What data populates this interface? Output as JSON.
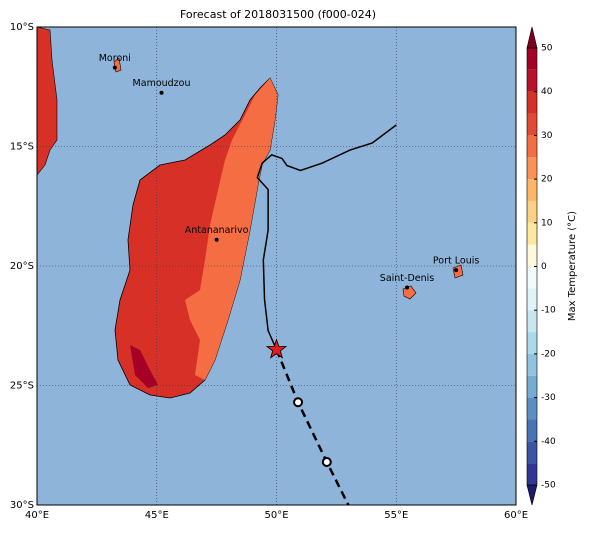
{
  "chart_data": {
    "type": "map",
    "title": "Forecast of 2018031500 (f000-024)",
    "xlim": [
      40,
      60
    ],
    "ylim": [
      -30,
      -10
    ],
    "xticks": [
      {
        "value": 40,
        "label": "40°E"
      },
      {
        "value": 45,
        "label": "45°E"
      },
      {
        "value": 50,
        "label": "50°E"
      },
      {
        "value": 55,
        "label": "55°E"
      },
      {
        "value": 60,
        "label": "60°E"
      }
    ],
    "yticks": [
      {
        "value": -10,
        "label": "10°S"
      },
      {
        "value": -15,
        "label": "15°S"
      },
      {
        "value": -20,
        "label": "20°S"
      },
      {
        "value": -25,
        "label": "25°S"
      },
      {
        "value": -30,
        "label": "30°S"
      }
    ],
    "grid": true,
    "ocean_color": "#8fb4d9",
    "cities": [
      {
        "name": "Moroni",
        "lon": 43.25,
        "lat": -11.7
      },
      {
        "name": "Mamoudzou",
        "lon": 45.2,
        "lat": -12.75
      },
      {
        "name": "Antananarivo",
        "lon": 47.5,
        "lat": -18.9
      },
      {
        "name": "Saint-Denis",
        "lon": 55.45,
        "lat": -20.9
      },
      {
        "name": "Port Louis",
        "lon": 57.5,
        "lat": -20.17
      }
    ],
    "past_track": {
      "color": "#000000",
      "lon": [
        55.0,
        54.0,
        53.07,
        51.9,
        51.0,
        50.44,
        50.23,
        49.8,
        49.4,
        49.2,
        49.65,
        49.65,
        49.45,
        49.5,
        49.65,
        50.0
      ],
      "lat": [
        -14.1,
        -14.85,
        -15.15,
        -15.7,
        -16.0,
        -15.8,
        -15.5,
        -15.35,
        -15.7,
        -16.3,
        -16.8,
        -18.5,
        -19.75,
        -21.4,
        -22.7,
        -23.5
      ]
    },
    "forecast_track": {
      "color": "#000000",
      "lon": [
        50.0,
        50.9,
        52.1,
        53.0
      ],
      "lat": [
        -23.5,
        -25.7,
        -28.2,
        -30.0
      ]
    },
    "current_position": {
      "lon": 50.0,
      "lat": -23.5,
      "color": "#e41a1c"
    },
    "colorbar": {
      "label": "Max Temperature (°C)",
      "ticks": [
        -50,
        -40,
        -30,
        -20,
        -10,
        0,
        10,
        20,
        30,
        40,
        50
      ],
      "levels": [
        -50,
        -45,
        -40,
        -35,
        -30,
        -25,
        -20,
        -15,
        -10,
        -5,
        0,
        5,
        10,
        15,
        20,
        25,
        30,
        35,
        40,
        45,
        50
      ],
      "colors": [
        "#313695",
        "#3b54a4",
        "#4575b4",
        "#5b8fc2",
        "#74add1",
        "#90c3dd",
        "#abd9e9",
        "#c7e6f0",
        "#e0f3f8",
        "#f2fafc",
        "#fff9dc",
        "#fee8a0",
        "#fdd185",
        "#fdb668",
        "#f99254",
        "#f46d43",
        "#e34a33",
        "#d73027",
        "#b8122a",
        "#a50026"
      ],
      "under_color": "#1a1a6e",
      "over_color": "#7f0020"
    }
  }
}
